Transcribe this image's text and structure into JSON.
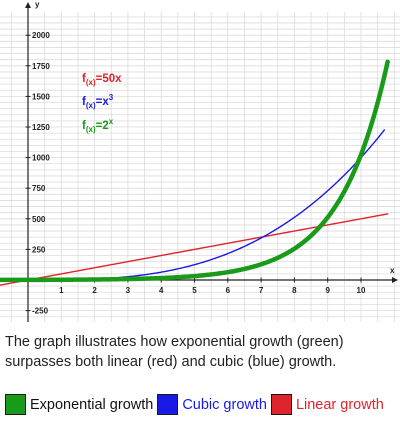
{
  "chart_data": {
    "type": "line",
    "x_axis_label": "x",
    "y_axis_label": "y",
    "xlim": [
      -0.9,
      11.2
    ],
    "ylim": [
      -350,
      2200
    ],
    "x_ticks": [
      1,
      2,
      3,
      4,
      5,
      6,
      7,
      8,
      9,
      10
    ],
    "y_ticks": [
      -250,
      250,
      500,
      750,
      1000,
      1250,
      1500,
      1750,
      2000
    ],
    "grid": true,
    "series": [
      {
        "key": "linear",
        "formula": "50x",
        "color": "#e0242b",
        "x_min": -0.9,
        "x_max": 10.8
      },
      {
        "key": "cubic",
        "formula": "x^3",
        "color": "#1a1ae6",
        "x_min": -0.9,
        "x_max": 10.7
      },
      {
        "key": "exponential",
        "formula": "2^x",
        "color": "#1a9a1a",
        "x_min": -0.9,
        "x_max": 10.8
      }
    ],
    "formula_labels": [
      {
        "f": "f",
        "sub": "(x)",
        "eq": "=50x",
        "sup": "",
        "color": "#e0242b"
      },
      {
        "f": "f",
        "sub": "(x)",
        "eq": "=x",
        "sup": "3",
        "color": "#1a1ae6"
      },
      {
        "f": "f",
        "sub": "(x)",
        "eq": "=2",
        "sup": "x",
        "color": "#1a9a1a"
      }
    ]
  },
  "caption": "The graph illustrates how exponential growth (green) surpasses both linear (red) and cubic (blue) growth.",
  "legend": [
    {
      "label": "Exponential growth",
      "color": "#1a9a1a",
      "text_color": "#111111"
    },
    {
      "label": "Cubic growth",
      "color": "#1a1ae6",
      "text_color": "#1a1ae6"
    },
    {
      "label": "Linear growth",
      "color": "#e0242b",
      "text_color": "#e0242b"
    }
  ]
}
